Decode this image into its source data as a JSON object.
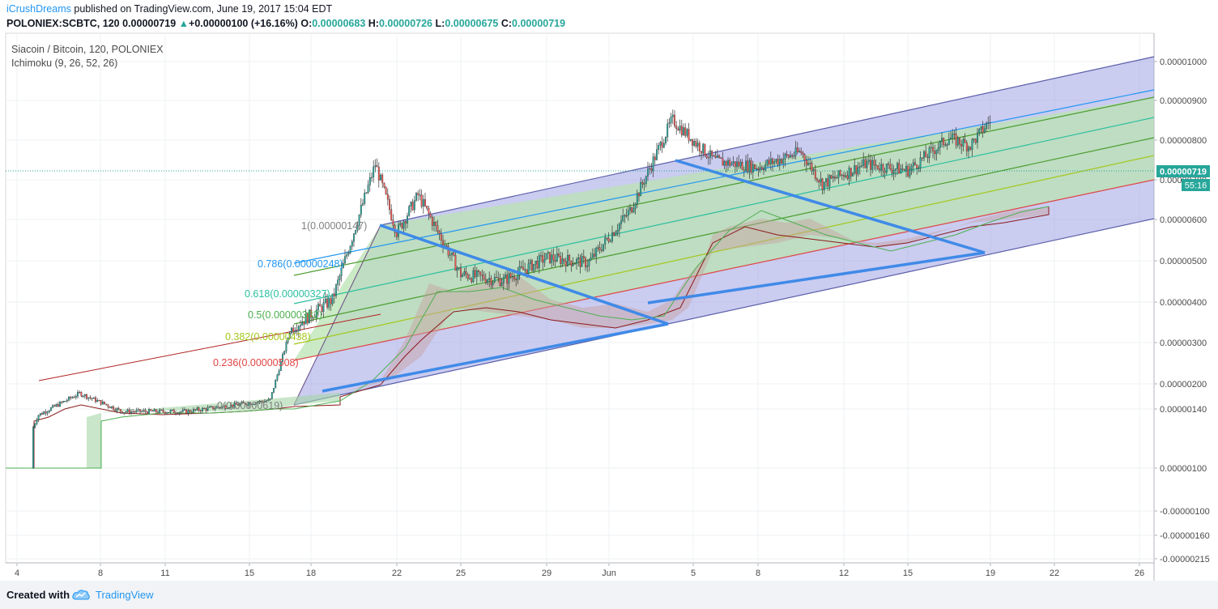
{
  "header": {
    "author": "iCrushDreams",
    "published": "published on TradingView.com, June 19, 2017 15:04 EDT",
    "symbol": "POLONIEX:SCBTC, 120",
    "last": "0.00000719",
    "change_arrow": "▲",
    "change": "+0.00000100 (+16.16%)",
    "open_label": "O:",
    "open": "0.00000683",
    "high_label": "H:",
    "high": "0.00000726",
    "low_label": "L:",
    "low": "0.00000675",
    "close_label": "C:",
    "close": "0.00000719"
  },
  "legend": {
    "series_title": "Siacoin / Bitcoin, 120, POLONIEX",
    "indicator": "Ichimoku (9, 26, 52, 26)"
  },
  "price_label": {
    "value": "0.00000719",
    "countdown": "55:16"
  },
  "fib_labels": [
    {
      "text": "1(0.00000147)",
      "color": "#808080"
    },
    {
      "text": "0.786(0.00000248)",
      "color": "#2196f3"
    },
    {
      "text": "0.618(0.00000327)",
      "color": "#2bbfa0"
    },
    {
      "text": "0.5(0.00000382)",
      "color": "#4caf50"
    },
    {
      "text": "0.382(0.00000438)",
      "color": "#a5c71e"
    },
    {
      "text": "0.236(0.00000508)",
      "color": "#e04545"
    },
    {
      "text": "0(0.00000619)",
      "color": "#808080"
    }
  ],
  "footer": {
    "created_with": "Created with",
    "brand": "TradingView"
  },
  "colors": {
    "up_candle": "#26a69a",
    "down_candle": "#ef5350",
    "channel_fill": "#9fa3e3",
    "inner_fill": "#b9e3b3",
    "trendline": "#3f8ae8",
    "accent": "#2196f3"
  },
  "chart_data": {
    "type": "candlestick",
    "title": "Siacoin / Bitcoin, 120, POLONIEX",
    "y_scale": "log",
    "y_ticks": [
      "0.00001000",
      "0.00000900",
      "0.00000800",
      "0.00000700",
      "0.00000600",
      "0.00000500",
      "0.00000400",
      "0.00000300",
      "0.00000200",
      "0.00000140",
      "0.00000100",
      "-0.00000100",
      "-0.00000160",
      "-0.00000215"
    ],
    "x_ticks": [
      "4",
      "8",
      "11",
      "15",
      "18",
      "22",
      "25",
      "29",
      "Jun",
      "5",
      "8",
      "12",
      "15",
      "19",
      "22",
      "26"
    ],
    "last_price": 7.19e-06,
    "approx_close_path": [
      {
        "date": "May 4",
        "close": 1e-06
      },
      {
        "date": "May 5",
        "close": 1.35e-06
      },
      {
        "date": "May 7",
        "close": 1.53e-06
      },
      {
        "date": "May 9",
        "close": 1.38e-06
      },
      {
        "date": "May 12",
        "close": 1.38e-06
      },
      {
        "date": "May 16",
        "close": 1.47e-06
      },
      {
        "date": "May 17",
        "close": 2.2e-06
      },
      {
        "date": "May 19",
        "close": 2.6e-06
      },
      {
        "date": "May 21",
        "close": 5.6e-06
      },
      {
        "date": "May 22",
        "close": 3.8e-06
      },
      {
        "date": "May 23",
        "close": 4.7e-06
      },
      {
        "date": "May 25",
        "close": 3e-06
      },
      {
        "date": "May 27",
        "close": 2.9e-06
      },
      {
        "date": "May 29",
        "close": 3.3e-06
      },
      {
        "date": "May 31",
        "close": 3.2e-06
      },
      {
        "date": "Jun 2",
        "close": 4.3e-06
      },
      {
        "date": "Jun 4",
        "close": 7.2e-06
      },
      {
        "date": "Jun 5",
        "close": 6.4e-06
      },
      {
        "date": "Jun 6",
        "close": 5.7e-06
      },
      {
        "date": "Jun 8",
        "close": 5.5e-06
      },
      {
        "date": "Jun 10",
        "close": 6e-06
      },
      {
        "date": "Jun 11",
        "close": 5e-06
      },
      {
        "date": "Jun 13",
        "close": 5.6e-06
      },
      {
        "date": "Jun 15",
        "close": 5.4e-06
      },
      {
        "date": "Jun 17",
        "close": 6.5e-06
      },
      {
        "date": "Jun 18",
        "close": 6.2e-06
      },
      {
        "date": "Jun 19",
        "close": 7.19e-06
      }
    ]
  }
}
